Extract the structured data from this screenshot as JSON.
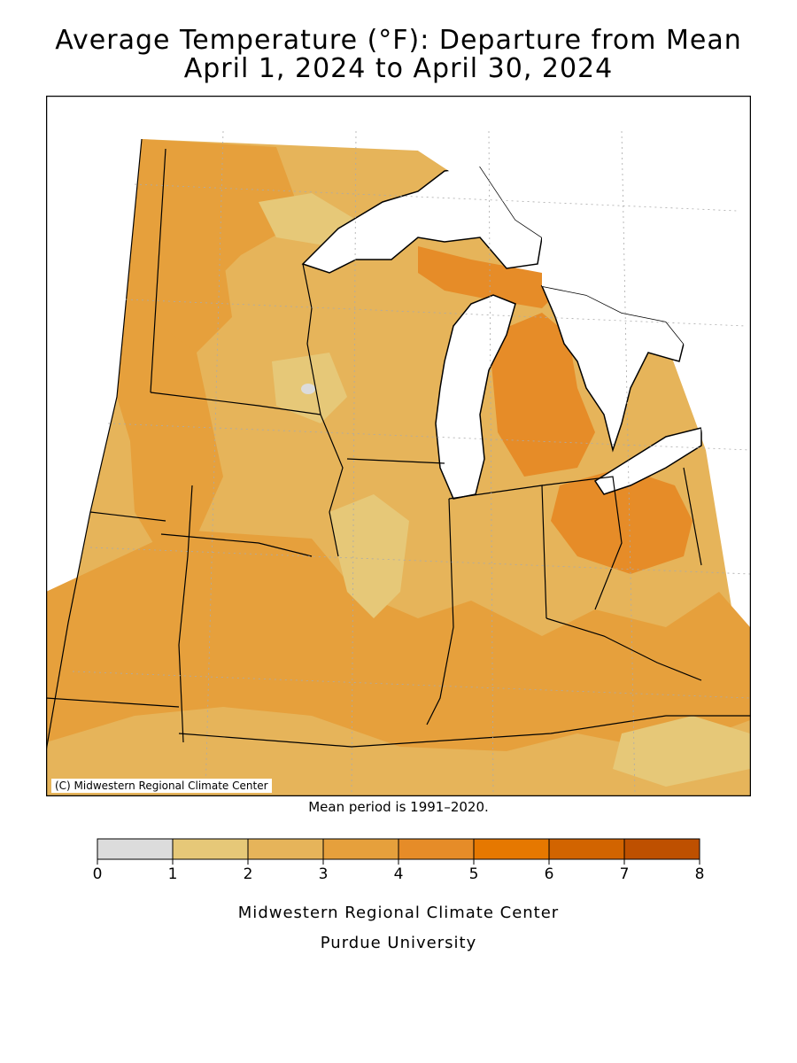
{
  "title": {
    "line1": "Average Temperature (°F): Departure from Mean",
    "line2": "April 1, 2024 to April 30, 2024"
  },
  "map": {
    "copyright": "(C) Midwestern Regional Climate Center",
    "mean_note": "Mean period is 1991–2020.",
    "water_color": "#ffffff",
    "border_color": "#000000"
  },
  "legend": {
    "ticks": [
      "0",
      "1",
      "2",
      "3",
      "4",
      "5",
      "6",
      "7",
      "8"
    ],
    "bins": [
      {
        "range": [
          0,
          1
        ],
        "color": "#dcdcdc"
      },
      {
        "range": [
          1,
          2
        ],
        "color": "#e6c878"
      },
      {
        "range": [
          2,
          3
        ],
        "color": "#e6b45a"
      },
      {
        "range": [
          3,
          4
        ],
        "color": "#e6a03c"
      },
      {
        "range": [
          4,
          5
        ],
        "color": "#e68c28"
      },
      {
        "range": [
          5,
          6
        ],
        "color": "#e67800"
      },
      {
        "range": [
          6,
          7
        ],
        "color": "#d26400"
      },
      {
        "range": [
          7,
          8
        ],
        "color": "#be5000"
      }
    ]
  },
  "credits": {
    "line1": "Midwestern Regional Climate Center",
    "line2": "Purdue University"
  }
}
